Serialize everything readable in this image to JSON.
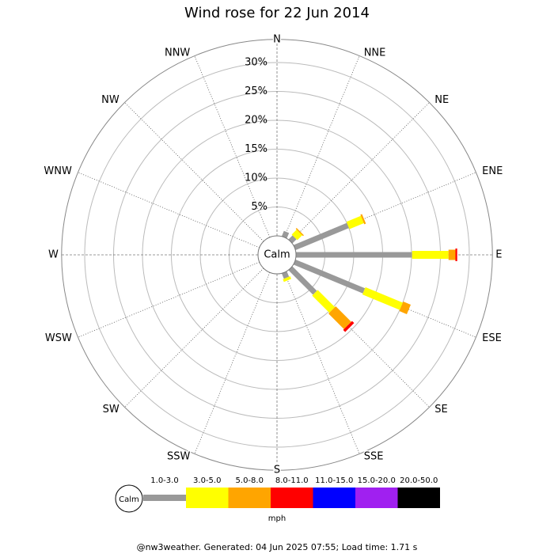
{
  "chart_data": {
    "type": "windrose",
    "title": "Wind rose for 22 Jun 2014",
    "categories": [
      "N",
      "NNE",
      "NE",
      "ENE",
      "E",
      "ESE",
      "SE",
      "SSE",
      "S",
      "SSW",
      "SW",
      "WSW",
      "W",
      "WNW",
      "NW",
      "NNW"
    ],
    "series": [
      {
        "name": "1.0-3.0",
        "color": "#999999",
        "values": [
          0,
          1.0,
          1.0,
          10.0,
          20.1,
          13.0,
          6.0,
          1.0,
          0,
          0,
          0,
          0,
          0,
          0,
          0,
          0
        ]
      },
      {
        "name": "3.0-5.0",
        "color": "#ffff00",
        "values": [
          0,
          0,
          1.2,
          2.7,
          6.3,
          7.0,
          4.2,
          0.5,
          0,
          0,
          0,
          0,
          0,
          0,
          0,
          0
        ]
      },
      {
        "name": "5.0-8.0",
        "color": "#ffa500",
        "values": [
          0,
          0,
          0.2,
          0.3,
          1.2,
          1.4,
          3.8,
          0,
          0,
          0,
          0,
          0,
          0,
          0,
          0,
          0
        ]
      },
      {
        "name": "8.0-11.0",
        "color": "#ff0000",
        "values": [
          0,
          0,
          0,
          0,
          0.3,
          0,
          0.5,
          0,
          0,
          0,
          0,
          0,
          0,
          0,
          0,
          0
        ]
      },
      {
        "name": "11.0-15.0",
        "color": "#0000ff",
        "values": [
          0,
          0,
          0,
          0,
          0,
          0,
          0,
          0,
          0,
          0,
          0,
          0,
          0,
          0,
          0,
          0
        ]
      },
      {
        "name": "15.0-20.0",
        "color": "#a020f0",
        "values": [
          0,
          0,
          0,
          0,
          0,
          0,
          0,
          0,
          0,
          0,
          0,
          0,
          0,
          0,
          0,
          0
        ]
      },
      {
        "name": "20.0-50.0",
        "color": "#000000",
        "values": [
          0,
          0,
          0,
          0,
          0,
          0,
          0,
          0,
          0,
          0,
          0,
          0,
          0,
          0,
          0,
          0
        ]
      }
    ],
    "rlim": [
      0,
      34
    ],
    "rticks": [
      {
        "value": 5,
        "label": "5%"
      },
      {
        "value": 10,
        "label": "10%"
      },
      {
        "value": 15,
        "label": "15%"
      },
      {
        "value": 20,
        "label": "20%"
      },
      {
        "value": 25,
        "label": "25%"
      },
      {
        "value": 30,
        "label": "30%"
      }
    ],
    "calm_label": "Calm",
    "legend_unit": "mph",
    "footer": "@nw3weather. Generated: 04 Jun 2025 07:55; Load time: 1.71 s"
  }
}
